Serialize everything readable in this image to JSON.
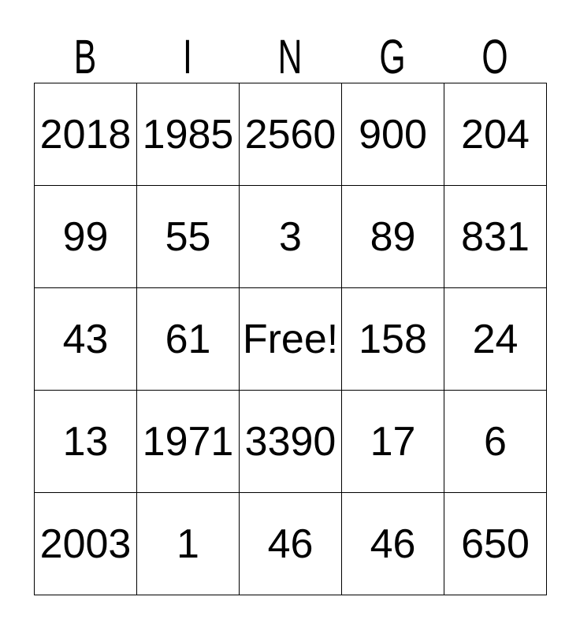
{
  "bingo": {
    "header_letters": [
      "B",
      "I",
      "N",
      "G",
      "O"
    ],
    "rows": [
      [
        "2018",
        "1985",
        "2560",
        "900",
        "204"
      ],
      [
        "99",
        "55",
        "3",
        "89",
        "831"
      ],
      [
        "43",
        "61",
        "Free!",
        "158",
        "24"
      ],
      [
        "13",
        "1971",
        "3390",
        "17",
        "6"
      ],
      [
        "2003",
        "1",
        "46",
        "46",
        "650"
      ]
    ],
    "free_cell_label": "Free!",
    "colors": {
      "background": "#ffffff",
      "text": "#000000",
      "grid_border": "#000000"
    }
  }
}
